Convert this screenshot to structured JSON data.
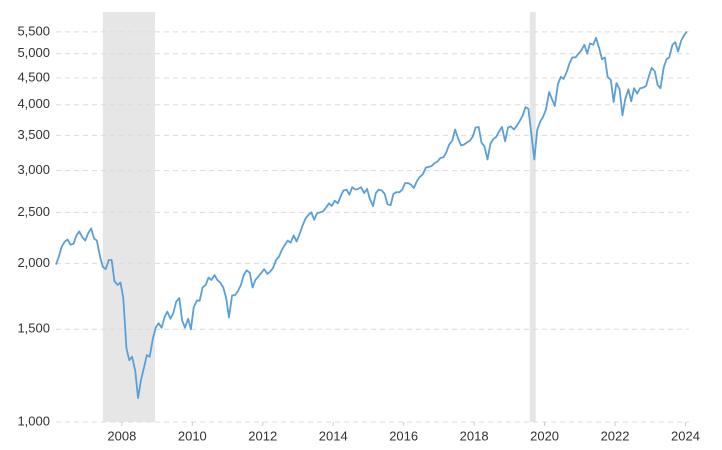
{
  "chart_data": {
    "type": "line",
    "color": "#5b9fd7",
    "shade_color": "#e6e6e6",
    "yscale": "log",
    "grid": true,
    "recessions": [
      [
        2007.46,
        2008.94
      ],
      [
        2019.58,
        2019.75
      ]
    ],
    "xlim": [
      2006.13,
      2024.1
    ],
    "xticks": [
      2008,
      2010,
      2012,
      2014,
      2016,
      2018,
      2020,
      2022,
      2024
    ],
    "ylim": [
      1000,
      6000
    ],
    "yticks": [
      {
        "value": 1000,
        "label": "1,000"
      },
      {
        "value": 1500,
        "label": "1,500"
      },
      {
        "value": 2000,
        "label": "2,000"
      },
      {
        "value": 2500,
        "label": "2,500"
      },
      {
        "value": 3000,
        "label": "3,000"
      },
      {
        "value": 3500,
        "label": "3,500"
      },
      {
        "value": 4000,
        "label": "4,000"
      },
      {
        "value": 4500,
        "label": "4,500"
      },
      {
        "value": 5000,
        "label": "5,000"
      },
      {
        "value": 5500,
        "label": "5,500"
      }
    ],
    "x": [
      2006.13,
      2006.21,
      2006.29,
      2006.38,
      2006.46,
      2006.54,
      2006.63,
      2006.71,
      2006.79,
      2006.88,
      2006.96,
      2007.04,
      2007.13,
      2007.21,
      2007.29,
      2007.38,
      2007.46,
      2007.54,
      2007.63,
      2007.71,
      2007.79,
      2007.88,
      2007.96,
      2008.04,
      2008.13,
      2008.21,
      2008.29,
      2008.38,
      2008.46,
      2008.54,
      2008.63,
      2008.71,
      2008.79,
      2008.88,
      2008.96,
      2009.04,
      2009.13,
      2009.21,
      2009.29,
      2009.38,
      2009.46,
      2009.54,
      2009.63,
      2009.71,
      2009.79,
      2009.88,
      2009.96,
      2010.04,
      2010.13,
      2010.21,
      2010.29,
      2010.38,
      2010.46,
      2010.54,
      2010.63,
      2010.71,
      2010.79,
      2010.88,
      2010.96,
      2011.04,
      2011.13,
      2011.21,
      2011.29,
      2011.38,
      2011.46,
      2011.54,
      2011.63,
      2011.71,
      2011.79,
      2011.88,
      2011.96,
      2012.04,
      2012.13,
      2012.21,
      2012.29,
      2012.38,
      2012.46,
      2012.54,
      2012.63,
      2012.71,
      2012.79,
      2012.88,
      2012.96,
      2013.04,
      2013.13,
      2013.21,
      2013.29,
      2013.38,
      2013.46,
      2013.54,
      2013.63,
      2013.71,
      2013.79,
      2013.88,
      2013.96,
      2014.04,
      2014.13,
      2014.21,
      2014.29,
      2014.38,
      2014.46,
      2014.54,
      2014.63,
      2014.71,
      2014.79,
      2014.88,
      2014.96,
      2015.04,
      2015.13,
      2015.21,
      2015.29,
      2015.38,
      2015.46,
      2015.54,
      2015.63,
      2015.71,
      2015.79,
      2015.88,
      2015.96,
      2016.04,
      2016.13,
      2016.21,
      2016.29,
      2016.38,
      2016.46,
      2016.54,
      2016.63,
      2016.71,
      2016.79,
      2016.88,
      2016.96,
      2017.04,
      2017.13,
      2017.21,
      2017.29,
      2017.38,
      2017.46,
      2017.54,
      2017.63,
      2017.71,
      2017.79,
      2017.88,
      2017.96,
      2018.04,
      2018.13,
      2018.21,
      2018.29,
      2018.38,
      2018.46,
      2018.54,
      2018.63,
      2018.71,
      2018.79,
      2018.88,
      2018.96,
      2019.04,
      2019.13,
      2019.21,
      2019.29,
      2019.38,
      2019.46,
      2019.54,
      2019.63,
      2019.71,
      2019.79,
      2019.88,
      2019.96,
      2020.04,
      2020.13,
      2020.21,
      2020.29,
      2020.38,
      2020.46,
      2020.54,
      2020.63,
      2020.71,
      2020.79,
      2020.88,
      2020.96,
      2021.04,
      2021.13,
      2021.21,
      2021.29,
      2021.38,
      2021.46,
      2021.54,
      2021.63,
      2021.71,
      2021.79,
      2021.88,
      2021.96,
      2022.04,
      2022.13,
      2022.21,
      2022.29,
      2022.38,
      2022.46,
      2022.54,
      2022.63,
      2022.71,
      2022.79,
      2022.88,
      2022.96,
      2023.04,
      2023.13,
      2023.21,
      2023.29,
      2023.38,
      2023.46,
      2023.54,
      2023.63,
      2023.71,
      2023.79,
      2023.88,
      2023.96,
      2024.04
    ],
    "values": [
      1990,
      2060,
      2150,
      2200,
      2220,
      2170,
      2180,
      2260,
      2300,
      2240,
      2210,
      2280,
      2330,
      2230,
      2210,
      2060,
      1970,
      1950,
      2030,
      2030,
      1850,
      1820,
      1840,
      1720,
      1380,
      1310,
      1330,
      1250,
      1110,
      1200,
      1270,
      1340,
      1330,
      1440,
      1510,
      1540,
      1510,
      1580,
      1620,
      1570,
      1610,
      1690,
      1720,
      1560,
      1510,
      1570,
      1500,
      1650,
      1700,
      1700,
      1800,
      1820,
      1880,
      1860,
      1900,
      1860,
      1840,
      1800,
      1720,
      1580,
      1740,
      1740,
      1770,
      1820,
      1900,
      1940,
      1920,
      1800,
      1860,
      1890,
      1920,
      1950,
      1910,
      1930,
      1960,
      2030,
      2060,
      2120,
      2170,
      2210,
      2190,
      2260,
      2200,
      2270,
      2360,
      2430,
      2470,
      2500,
      2420,
      2490,
      2500,
      2510,
      2550,
      2600,
      2570,
      2630,
      2600,
      2680,
      2750,
      2760,
      2700,
      2790,
      2760,
      2770,
      2790,
      2720,
      2770,
      2650,
      2570,
      2720,
      2760,
      2750,
      2710,
      2590,
      2580,
      2710,
      2730,
      2730,
      2760,
      2840,
      2840,
      2820,
      2780,
      2870,
      2920,
      2950,
      3040,
      3050,
      3060,
      3100,
      3120,
      3170,
      3180,
      3250,
      3360,
      3420,
      3590,
      3460,
      3350,
      3360,
      3390,
      3420,
      3480,
      3620,
      3630,
      3390,
      3340,
      3150,
      3370,
      3440,
      3480,
      3560,
      3630,
      3410,
      3620,
      3640,
      3590,
      3650,
      3720,
      3820,
      3960,
      3930,
      3500,
      3150,
      3580,
      3720,
      3800,
      3920,
      4230,
      4100,
      3980,
      4380,
      4520,
      4480,
      4620,
      4800,
      4920,
      4920,
      5000,
      5070,
      5200,
      5000,
      5230,
      5200,
      5360,
      5150,
      4880,
      4920,
      4520,
      4460,
      4050,
      4400,
      4280,
      3820,
      4100,
      4280,
      4060,
      4300,
      4200,
      4300,
      4310,
      4340,
      4530,
      4700,
      4630,
      4360,
      4300,
      4700,
      4880,
      4920,
      5200,
      5260,
      5050,
      5300,
      5420,
      5510
    ]
  }
}
